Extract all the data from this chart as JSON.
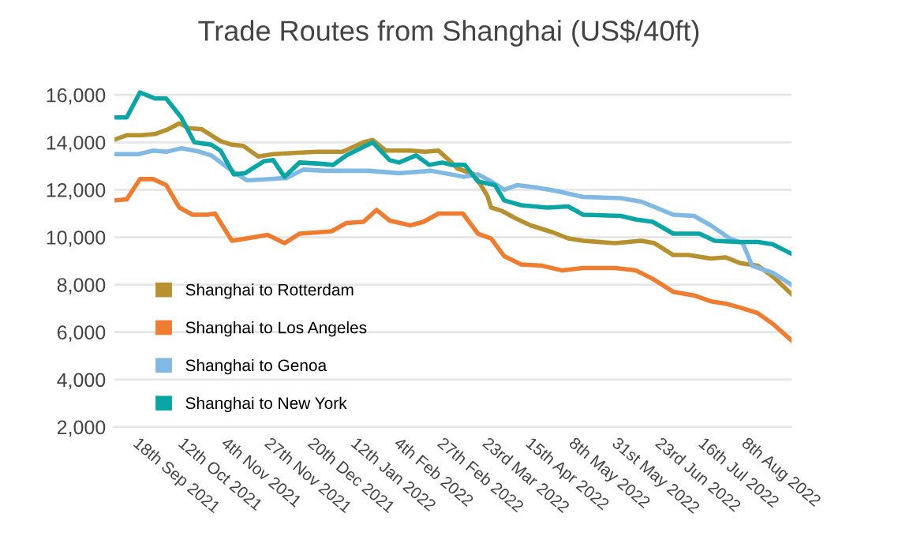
{
  "chart_data": {
    "type": "line",
    "title": "Trade Routes from Shanghai (US$/40ft)",
    "xlim": [
      "2021-09-04",
      "2022-08-31"
    ],
    "ylim": [
      2000,
      16400
    ],
    "yticks": [
      {
        "value": 2000,
        "label": "2,000"
      },
      {
        "value": 4000,
        "label": "4,000"
      },
      {
        "value": 6000,
        "label": "6,000"
      },
      {
        "value": 8000,
        "label": "8,000"
      },
      {
        "value": 10000,
        "label": "10,000"
      },
      {
        "value": 12000,
        "label": "12,000"
      },
      {
        "value": 14000,
        "label": "14,000"
      },
      {
        "value": 16000,
        "label": "16,000"
      }
    ],
    "xticks": [
      {
        "value": "2021-09-18",
        "label": "18th Sep 2021"
      },
      {
        "value": "2021-10-12",
        "label": "12th Oct 2021"
      },
      {
        "value": "2021-11-04",
        "label": "4th Nov 2021"
      },
      {
        "value": "2021-11-27",
        "label": "27th Nov 2021"
      },
      {
        "value": "2021-12-20",
        "label": "20th Dec 2021"
      },
      {
        "value": "2022-01-12",
        "label": "12th Jan 2022"
      },
      {
        "value": "2022-02-04",
        "label": "4th Feb 2022"
      },
      {
        "value": "2022-02-27",
        "label": "27th Feb 2022"
      },
      {
        "value": "2022-03-23",
        "label": "23rd Mar 2022"
      },
      {
        "value": "2022-04-15",
        "label": "15th Apr 2022"
      },
      {
        "value": "2022-05-08",
        "label": "8th May 2022"
      },
      {
        "value": "2022-05-31",
        "label": "31st May 2022"
      },
      {
        "value": "2022-06-23",
        "label": "23rd Jun 2022"
      },
      {
        "value": "2022-07-16",
        "label": "16th Jul 2022"
      },
      {
        "value": "2022-08-08",
        "label": "8th Aug 2022"
      }
    ],
    "grid": "y",
    "legend": "bottom left",
    "marker": "none",
    "line_style": "solid",
    "series": [
      {
        "name": "Shanghai to Rotterdam",
        "color": "#b8912f",
        "x": [
          "2021-09-04",
          "2021-09-11",
          "2021-09-19",
          "2021-09-26",
          "2021-10-03",
          "2021-10-09",
          "2021-10-14",
          "2021-10-21",
          "2021-10-31",
          "2021-11-06",
          "2021-11-12",
          "2021-11-20",
          "2021-11-28",
          "2021-12-09",
          "2021-12-21",
          "2022-01-04",
          "2022-01-15",
          "2022-01-20",
          "2022-01-27",
          "2022-02-09",
          "2022-02-17",
          "2022-02-24",
          "2022-03-03",
          "2022-03-06",
          "2022-03-15",
          "2022-03-22",
          "2022-03-24",
          "2022-03-30",
          "2022-04-06",
          "2022-04-14",
          "2022-04-26",
          "2022-05-04",
          "2022-05-12",
          "2022-05-29",
          "2022-06-12",
          "2022-06-19",
          "2022-06-29",
          "2022-07-07",
          "2022-07-19",
          "2022-07-27",
          "2022-08-04",
          "2022-08-13",
          "2022-08-21",
          "2022-08-31"
        ],
        "values": [
          14100,
          14300,
          14300,
          14350,
          14550,
          14800,
          14600,
          14550,
          14050,
          13900,
          13850,
          13400,
          13500,
          13550,
          13600,
          13600,
          14000,
          14100,
          13650,
          13650,
          13600,
          13650,
          13150,
          12900,
          12650,
          11750,
          11250,
          11100,
          10800,
          10500,
          10200,
          9950,
          9850,
          9750,
          9850,
          9750,
          9250,
          9250,
          9100,
          9150,
          8900,
          8800,
          8350,
          7600
        ]
      },
      {
        "name": "Shanghai to Los Angeles",
        "color": "#f07c2f",
        "x": [
          "2021-09-04",
          "2021-09-11",
          "2021-09-18",
          "2021-09-25",
          "2021-10-02",
          "2021-10-09",
          "2021-10-16",
          "2021-10-24",
          "2021-10-28",
          "2021-11-06",
          "2021-11-14",
          "2021-11-25",
          "2021-12-04",
          "2021-12-12",
          "2021-12-29",
          "2022-01-06",
          "2022-01-15",
          "2022-01-22",
          "2022-01-29",
          "2022-02-09",
          "2022-02-16",
          "2022-02-24",
          "2022-03-06",
          "2022-03-09",
          "2022-03-17",
          "2022-03-24",
          "2022-03-31",
          "2022-04-09",
          "2022-04-20",
          "2022-05-01",
          "2022-05-12",
          "2022-05-29",
          "2022-06-09",
          "2022-06-18",
          "2022-06-29",
          "2022-07-10",
          "2022-07-19",
          "2022-07-27",
          "2022-08-05",
          "2022-08-13",
          "2022-08-21",
          "2022-08-31"
        ],
        "values": [
          11550,
          11600,
          12450,
          12450,
          12200,
          11250,
          10950,
          10950,
          11000,
          9850,
          9950,
          10100,
          9750,
          10150,
          10250,
          10600,
          10650,
          11150,
          10700,
          10500,
          10650,
          11000,
          11000,
          11000,
          10150,
          9950,
          9200,
          8850,
          8800,
          8600,
          8700,
          8700,
          8600,
          8250,
          7700,
          7550,
          7300,
          7200,
          7000,
          6800,
          6350,
          5650
        ]
      },
      {
        "name": "Shanghai to Genoa",
        "color": "#80b9e3",
        "x": [
          "2021-09-04",
          "2021-09-17",
          "2021-09-25",
          "2021-10-02",
          "2021-10-10",
          "2021-10-20",
          "2021-10-26",
          "2021-11-06",
          "2021-11-14",
          "2021-11-25",
          "2021-12-05",
          "2021-12-14",
          "2021-12-26",
          "2022-01-18",
          "2022-02-03",
          "2022-02-20",
          "2022-03-06",
          "2022-03-09",
          "2022-03-17",
          "2022-03-23",
          "2022-03-31",
          "2022-04-07",
          "2022-04-17",
          "2022-04-28",
          "2022-05-12",
          "2022-06-01",
          "2022-06-12",
          "2022-06-29",
          "2022-07-10",
          "2022-07-19",
          "2022-07-29",
          "2022-08-05",
          "2022-08-10",
          "2022-08-21",
          "2022-08-31"
        ],
        "values": [
          13500,
          13500,
          13650,
          13600,
          13750,
          13600,
          13450,
          12800,
          12400,
          12450,
          12500,
          12850,
          12800,
          12800,
          12700,
          12800,
          12600,
          12550,
          12650,
          12400,
          12000,
          12200,
          12100,
          11950,
          11700,
          11650,
          11500,
          10950,
          10900,
          10500,
          9950,
          9750,
          8800,
          8500,
          8000
        ]
      },
      {
        "name": "Shanghai to New York",
        "color": "#0aa6a6",
        "x": [
          "2021-09-04",
          "2021-09-11",
          "2021-09-18",
          "2021-09-26",
          "2021-10-02",
          "2021-10-10",
          "2021-10-17",
          "2021-10-26",
          "2021-10-31",
          "2021-11-07",
          "2021-11-13",
          "2021-11-23",
          "2021-11-28",
          "2021-12-04",
          "2021-12-12",
          "2021-12-23",
          "2021-12-30",
          "2022-01-06",
          "2022-01-20",
          "2022-01-29",
          "2022-02-03",
          "2022-02-12",
          "2022-02-19",
          "2022-02-26",
          "2022-03-03",
          "2022-03-10",
          "2022-03-17",
          "2022-03-26",
          "2022-03-31",
          "2022-04-09",
          "2022-04-23",
          "2022-05-04",
          "2022-05-12",
          "2022-06-01",
          "2022-06-09",
          "2022-06-18",
          "2022-06-29",
          "2022-07-13",
          "2022-07-21",
          "2022-08-02",
          "2022-08-13",
          "2022-08-21",
          "2022-08-31"
        ],
        "values": [
          15050,
          15050,
          16100,
          15850,
          15850,
          15050,
          14000,
          13900,
          13650,
          12650,
          12700,
          13200,
          13250,
          12550,
          13150,
          13100,
          13050,
          13450,
          14000,
          13250,
          13150,
          13450,
          13050,
          13150,
          13050,
          13050,
          12350,
          12200,
          11550,
          11350,
          11250,
          11300,
          10950,
          10900,
          10750,
          10650,
          10150,
          10150,
          9850,
          9800,
          9800,
          9700,
          9300
        ]
      }
    ]
  }
}
